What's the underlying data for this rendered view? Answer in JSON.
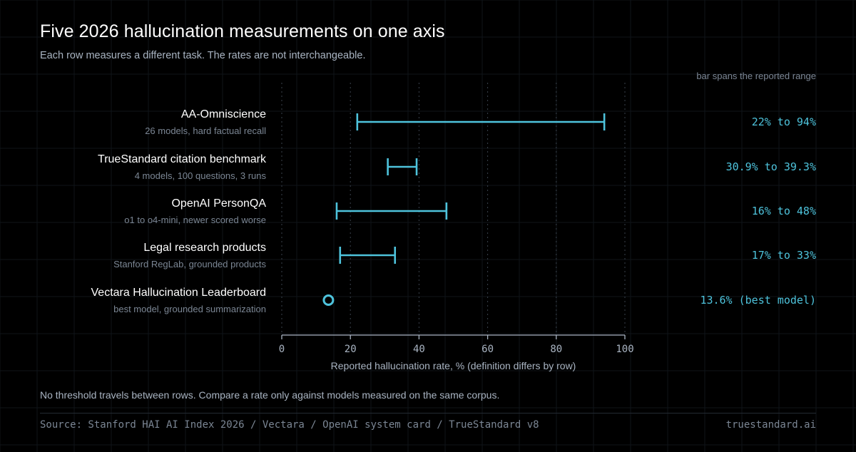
{
  "title": "Five 2026 hallucination measurements on one axis",
  "subtitle": "Each row measures a different task. The rates are not interchangeable.",
  "range_note": "bar spans the reported range",
  "xlabel": "Reported hallucination rate, % (definition differs by row)",
  "footnote": "No threshold travels between rows. Compare a rate only against models measured on the same corpus.",
  "source": "Source: Stanford HAI AI Index 2026 / Vectara / OpenAI system card / TrueStandard v8",
  "site": "truestandard.ai",
  "colors": {
    "accent": "#4ec3dc",
    "background": "#000000",
    "text_dim": "#a9b4c2",
    "text_muted": "#7b8694"
  },
  "chart_data": {
    "type": "range",
    "xlim": [
      0,
      100
    ],
    "xticks": [
      "0",
      "20",
      "40",
      "60",
      "80",
      "100"
    ],
    "grid": true,
    "rows": [
      {
        "name": "AA-Omniscience",
        "description": "26 models, hard factual recall",
        "low": 22,
        "high": 94,
        "label": "22% to 94%"
      },
      {
        "name": "TrueStandard citation benchmark",
        "description": "4 models, 100 questions, 3 runs",
        "low": 30.9,
        "high": 39.3,
        "label": "30.9% to 39.3%"
      },
      {
        "name": "OpenAI PersonQA",
        "description": "o1 to o4-mini, newer scored worse",
        "low": 16,
        "high": 48,
        "label": "16% to 48%"
      },
      {
        "name": "Legal research products",
        "description": "Stanford RegLab, grounded products",
        "low": 17,
        "high": 33,
        "label": "17% to 33%"
      },
      {
        "name": "Vectara Hallucination Leaderboard",
        "description": "best model, grounded summarization",
        "low": 13.6,
        "high": 13.6,
        "label": "13.6% (best model)"
      }
    ]
  }
}
